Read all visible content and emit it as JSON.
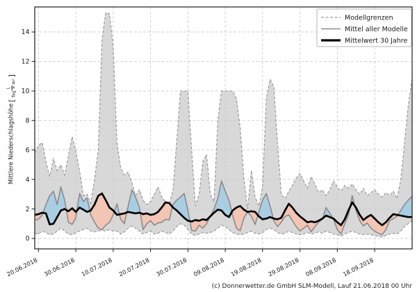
{
  "footer": {
    "text": "(c) Donnerwetter.de GmbH SLM-Modell, Lauf 21.06.2018 00 Uhr"
  },
  "chart_data": {
    "type": "line",
    "title": "",
    "ylabel_text": "Mittlere Niederschlagshöhe",
    "ylabel_unit": {
      "open": "[",
      "numerator": "L",
      "denominator": "Tag × m²",
      "close": "]"
    },
    "xlabel": "",
    "x_axis": "days since 20.06.2018",
    "day_start": -1,
    "xlim_days": [
      -1,
      100
    ],
    "ylim": [
      -0.7,
      15.7
    ],
    "grid": true,
    "x_tick_days": [
      0,
      10,
      20,
      30,
      40,
      50,
      60,
      70,
      80,
      90
    ],
    "x_tick_labels": [
      "20.06.2018",
      "30.06.2018",
      "10.07.2018",
      "20.07.2018",
      "30.07.2018",
      "09.08.2018",
      "19.08.2018",
      "29.08.2018",
      "08.09.2018",
      "18.09.2018"
    ],
    "y_ticks": [
      0,
      2,
      4,
      6,
      8,
      10,
      12,
      14
    ],
    "legend": {
      "position": "top-right",
      "entries": [
        {
          "label": "Modellgrenzen",
          "style": "dashed",
          "color": "#999999"
        },
        {
          "label": "Mittel aller Modelle",
          "style": "solid",
          "color": "#8a8a8a"
        },
        {
          "label": "Mittelwert 30 Jahre",
          "style": "solid-thick",
          "color": "#000000"
        }
      ]
    },
    "colors": {
      "band_fill": "#d8d8d8",
      "band_edge": "#949494",
      "above_fill": "#a9cee3",
      "below_fill": "#f3c5b4",
      "mean_line": "#8a8a8a",
      "norm_line": "#000000",
      "grid": "#c9c9c9",
      "frame": "#1a1a1a",
      "text": "#1a1a1a"
    },
    "series": [
      {
        "name": "Modellgrenzen oben",
        "values": [
          5.8,
          6.3,
          6.5,
          5.2,
          4.2,
          5.4,
          4.6,
          5.0,
          4.3,
          5.6,
          6.9,
          5.9,
          4.6,
          2.9,
          3.0,
          2.4,
          4.0,
          6.0,
          13.5,
          15.3,
          15.25,
          13.0,
          6.5,
          4.8,
          4.3,
          4.5,
          3.8,
          2.9,
          3.3,
          2.6,
          2.3,
          2.5,
          3.0,
          3.5,
          2.8,
          2.5,
          2.3,
          3.3,
          6.5,
          10.0,
          10.0,
          10.0,
          6.0,
          2.2,
          3.0,
          5.2,
          5.7,
          3.0,
          2.5,
          8.0,
          10.0,
          10.0,
          10.0,
          10.0,
          9.5,
          7.5,
          4.0,
          2.0,
          4.6,
          2.8,
          2.2,
          3.5,
          9.5,
          10.8,
          10.3,
          6.5,
          3.0,
          2.7,
          3.2,
          3.6,
          4.1,
          4.4,
          3.9,
          3.4,
          4.2,
          3.7,
          3.1,
          3.3,
          2.9,
          3.3,
          3.9,
          3.5,
          3.2,
          3.6,
          3.4,
          3.7,
          3.3,
          3.0,
          3.4,
          2.9,
          3.1,
          3.3,
          3.0,
          2.8,
          3.1,
          2.9,
          3.2,
          2.7,
          4.0,
          6.5,
          9.0,
          10.8
        ]
      },
      {
        "name": "Modellgrenzen unten",
        "values": [
          0.35,
          0.3,
          0.5,
          0.4,
          0.25,
          0.3,
          0.5,
          0.7,
          0.5,
          0.3,
          0.25,
          0.4,
          0.5,
          0.6,
          0.7,
          0.5,
          0.45,
          0.5,
          0.55,
          0.5,
          0.6,
          0.5,
          0.5,
          0.3,
          0.45,
          0.7,
          0.85,
          0.7,
          0.5,
          0.3,
          0.4,
          0.5,
          0.3,
          0.35,
          0.5,
          0.4,
          0.3,
          0.5,
          0.8,
          1.0,
          0.9,
          0.6,
          0.3,
          0.2,
          0.3,
          0.4,
          0.35,
          0.4,
          0.5,
          0.7,
          0.9,
          0.8,
          0.6,
          0.4,
          0.3,
          0.25,
          0.3,
          0.4,
          0.5,
          0.35,
          0.3,
          0.4,
          0.6,
          0.7,
          0.6,
          0.4,
          0.3,
          0.35,
          0.5,
          0.4,
          0.3,
          0.25,
          0.3,
          0.4,
          0.3,
          0.35,
          0.45,
          0.35,
          0.5,
          0.4,
          0.3,
          0.25,
          0.15,
          0.3,
          0.4,
          0.5,
          0.4,
          0.3,
          0.25,
          0.3,
          0.25,
          0.2,
          0.15,
          0.1,
          0.2,
          0.3,
          0.35,
          0.3,
          0.5,
          0.8,
          1.0,
          1.2
        ]
      },
      {
        "name": "Mittel aller Modelle",
        "values": [
          1.25,
          1.3,
          1.6,
          2.3,
          2.9,
          3.2,
          2.3,
          3.5,
          2.6,
          1.1,
          0.95,
          1.4,
          3.05,
          2.5,
          2.75,
          1.6,
          1.1,
          0.7,
          0.6,
          0.9,
          1.1,
          1.6,
          2.35,
          1.3,
          1.0,
          2.2,
          3.3,
          2.8,
          2.1,
          0.6,
          1.0,
          1.2,
          0.9,
          1.05,
          1.1,
          1.3,
          1.25,
          2.3,
          2.6,
          2.8,
          3.05,
          1.9,
          0.55,
          0.5,
          0.9,
          0.7,
          1.0,
          1.5,
          2.0,
          2.7,
          3.9,
          3.2,
          2.6,
          1.55,
          0.7,
          0.52,
          1.4,
          1.8,
          1.5,
          0.95,
          1.8,
          2.6,
          3.05,
          2.2,
          1.2,
          0.8,
          1.1,
          1.5,
          1.6,
          1.2,
          0.8,
          0.5,
          0.7,
          0.9,
          0.45,
          0.8,
          1.1,
          1.3,
          2.1,
          1.7,
          1.3,
          0.6,
          0.3,
          1.0,
          1.6,
          2.9,
          1.9,
          1.2,
          0.85,
          1.05,
          0.7,
          0.5,
          0.35,
          0.25,
          0.6,
          1.2,
          1.35,
          1.5,
          1.9,
          2.3,
          2.6,
          2.85
        ]
      },
      {
        "name": "Mittelwert 30 Jahre",
        "values": [
          1.6,
          1.65,
          1.75,
          1.7,
          0.95,
          1.0,
          1.45,
          1.9,
          2.0,
          1.85,
          2.05,
          1.8,
          2.1,
          1.95,
          1.8,
          1.9,
          2.3,
          2.9,
          3.05,
          2.6,
          2.1,
          1.9,
          1.6,
          1.65,
          1.7,
          1.8,
          1.75,
          1.7,
          1.75,
          1.65,
          1.7,
          1.6,
          1.65,
          1.8,
          2.1,
          2.45,
          2.4,
          2.1,
          1.9,
          1.65,
          1.4,
          1.2,
          1.15,
          1.25,
          1.2,
          1.3,
          1.25,
          1.5,
          1.75,
          1.95,
          1.9,
          1.6,
          1.45,
          1.9,
          2.1,
          2.2,
          1.95,
          1.8,
          1.85,
          1.8,
          1.5,
          1.3,
          1.35,
          1.45,
          1.35,
          1.3,
          1.4,
          1.9,
          2.35,
          2.1,
          1.75,
          1.5,
          1.3,
          1.1,
          1.15,
          1.1,
          1.2,
          1.35,
          1.55,
          1.45,
          1.35,
          1.1,
          0.9,
          1.3,
          1.9,
          2.45,
          2.1,
          1.6,
          1.25,
          1.45,
          1.6,
          1.35,
          1.1,
          0.9,
          1.1,
          1.4,
          1.65,
          1.6,
          1.55,
          1.5,
          1.45,
          1.45
        ]
      }
    ]
  }
}
